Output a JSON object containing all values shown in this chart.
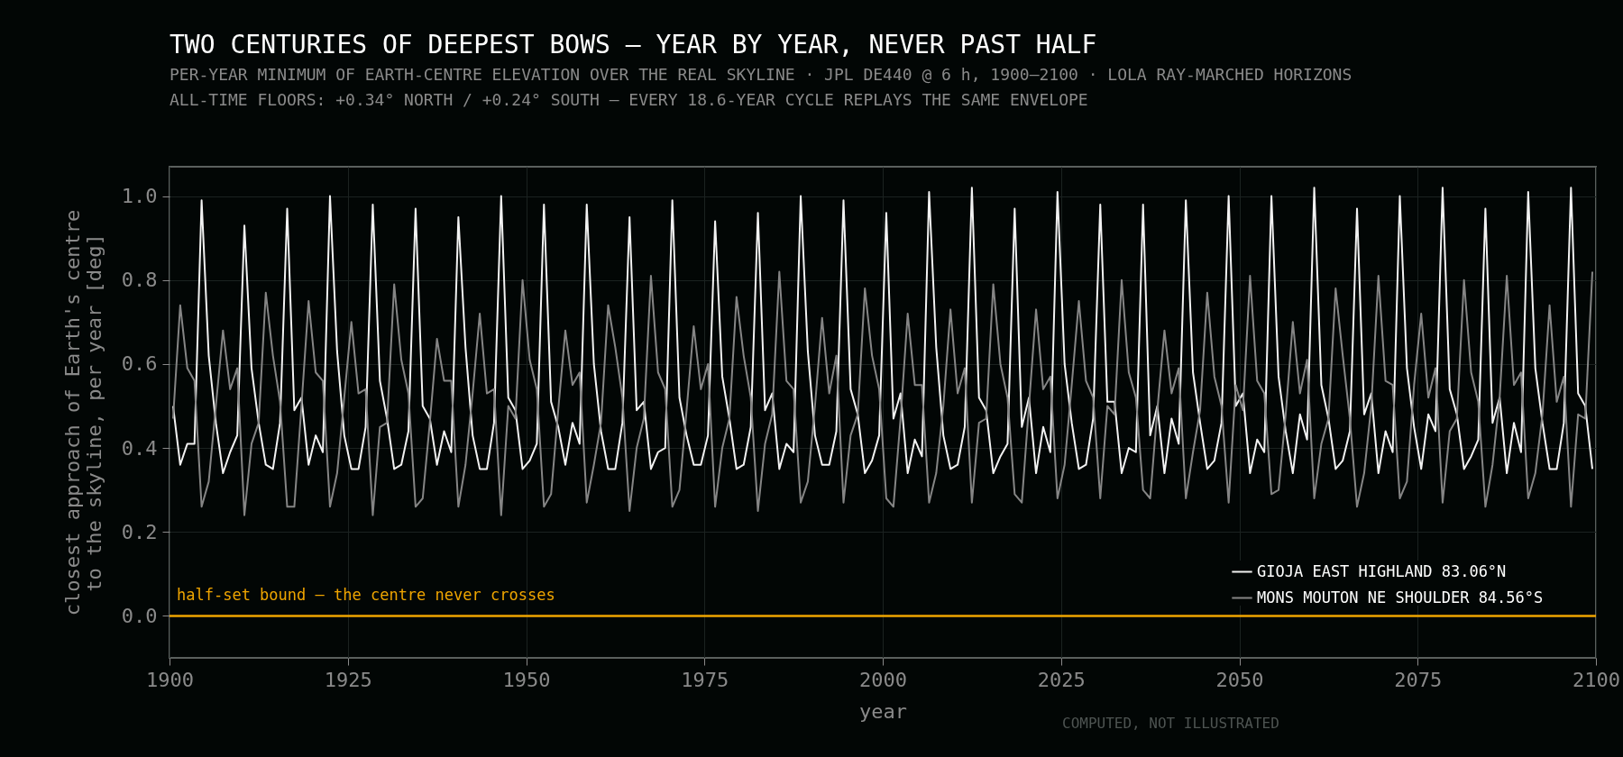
{
  "chart_data": {
    "type": "line",
    "title": "TWO CENTURIES OF DEEPEST BOWS — YEAR BY YEAR, NEVER PAST HALF",
    "subtitle": "PER-YEAR MINIMUM OF EARTH-CENTRE ELEVATION OVER THE REAL SKYLINE · JPL DE440 @ 6 h, 1900–2100 · LOLA RAY-MARCHED HORIZONS\nALL-TIME FLOORS: +0.34° NORTH / +0.24° SOUTH — EVERY 18.6-YEAR CYCLE REPLAYS THE SAME ENVELOPE",
    "xlabel": "year",
    "ylabel": "closest approach of Earth's centre\nto the skyline, per year [deg]",
    "annotations": [
      "COMPUTED, NOT ILLUSTRATED"
    ],
    "x": [
      1900.5,
      1901.5,
      1902.5,
      1903.5,
      1904.5,
      1905.5,
      1906.5,
      1907.5,
      1908.5,
      1909.5,
      1910.5,
      1911.5,
      1912.5,
      1913.5,
      1914.5,
      1915.5,
      1916.5,
      1917.5,
      1918.5,
      1919.5,
      1920.5,
      1921.5,
      1922.5,
      1923.5,
      1924.5,
      1925.5,
      1926.5,
      1927.5,
      1928.5,
      1929.5,
      1930.5,
      1931.5,
      1932.5,
      1933.5,
      1934.5,
      1935.5,
      1936.5,
      1937.5,
      1938.5,
      1939.5,
      1940.5,
      1941.5,
      1942.5,
      1943.5,
      1944.5,
      1945.5,
      1946.5,
      1947.5,
      1948.5,
      1949.5,
      1950.5,
      1951.5,
      1952.5,
      1953.5,
      1954.5,
      1955.5,
      1956.5,
      1957.5,
      1958.5,
      1959.5,
      1960.5,
      1961.5,
      1962.5,
      1963.5,
      1964.5,
      1965.5,
      1966.5,
      1967.5,
      1968.5,
      1969.5,
      1970.5,
      1971.5,
      1972.5,
      1973.5,
      1974.5,
      1975.5,
      1976.5,
      1977.5,
      1978.5,
      1979.5,
      1980.5,
      1981.5,
      1982.5,
      1983.5,
      1984.5,
      1985.5,
      1986.5,
      1987.5,
      1988.5,
      1989.5,
      1990.5,
      1991.5,
      1992.5,
      1993.5,
      1994.5,
      1995.5,
      1996.5,
      1997.5,
      1998.5,
      1999.5,
      2000.5,
      2001.5,
      2002.5,
      2003.5,
      2004.5,
      2005.5,
      2006.5,
      2007.5,
      2008.5,
      2009.5,
      2010.5,
      2011.5,
      2012.5,
      2013.5,
      2014.5,
      2015.5,
      2016.5,
      2017.5,
      2018.5,
      2019.5,
      2020.5,
      2021.5,
      2022.5,
      2023.5,
      2024.5,
      2025.5,
      2026.5,
      2027.5,
      2028.5,
      2029.5,
      2030.5,
      2031.5,
      2032.5,
      2033.5,
      2034.5,
      2035.5,
      2036.5,
      2037.5,
      2038.5,
      2039.5,
      2040.5,
      2041.5,
      2042.5,
      2043.5,
      2044.5,
      2045.5,
      2046.5,
      2047.5,
      2048.5,
      2049.5,
      2050.5,
      2051.5,
      2052.5,
      2053.5,
      2054.5,
      2055.5,
      2056.5,
      2057.5,
      2058.5,
      2059.5,
      2060.5,
      2061.5,
      2062.5,
      2063.5,
      2064.5,
      2065.5,
      2066.5,
      2067.5,
      2068.5,
      2069.5,
      2070.5,
      2071.5,
      2072.5,
      2073.5,
      2074.5,
      2075.5,
      2076.5,
      2077.5,
      2078.5,
      2079.5,
      2080.5,
      2081.5,
      2082.5,
      2083.5,
      2084.5,
      2085.5,
      2086.5,
      2087.5,
      2088.5,
      2089.5,
      2090.5,
      2091.5,
      2092.5,
      2093.5,
      2094.5,
      2095.5,
      2096.5,
      2097.5,
      2098.5,
      2099.5
    ],
    "series": [
      {
        "name": "GIOJA EAST HIGHLAND 83.06°N",
        "color": "#f2f2f2",
        "values": [
          0.5,
          0.36,
          0.41,
          0.41,
          0.99,
          0.62,
          0.46,
          0.34,
          0.39,
          0.43,
          0.93,
          0.59,
          0.46,
          0.36,
          0.35,
          0.46,
          0.97,
          0.49,
          0.52,
          0.36,
          0.43,
          0.39,
          1.0,
          0.63,
          0.43,
          0.35,
          0.35,
          0.45,
          0.98,
          0.56,
          0.47,
          0.35,
          0.36,
          0.44,
          0.97,
          0.5,
          0.47,
          0.36,
          0.44,
          0.39,
          0.95,
          0.64,
          0.43,
          0.35,
          0.35,
          0.46,
          1.0,
          0.52,
          0.49,
          0.35,
          0.37,
          0.41,
          0.98,
          0.51,
          0.45,
          0.36,
          0.46,
          0.41,
          0.98,
          0.6,
          0.44,
          0.35,
          0.35,
          0.46,
          0.95,
          0.49,
          0.51,
          0.35,
          0.39,
          0.4,
          0.99,
          0.52,
          0.43,
          0.36,
          0.36,
          0.43,
          0.94,
          0.57,
          0.47,
          0.35,
          0.36,
          0.45,
          0.96,
          0.49,
          0.53,
          0.35,
          0.41,
          0.39,
          1.0,
          0.63,
          0.43,
          0.36,
          0.36,
          0.44,
          0.99,
          0.54,
          0.48,
          0.34,
          0.37,
          0.43,
          0.96,
          0.47,
          0.53,
          0.34,
          0.42,
          0.38,
          1.01,
          0.64,
          0.43,
          0.35,
          0.36,
          0.45,
          1.02,
          0.52,
          0.49,
          0.34,
          0.38,
          0.41,
          0.97,
          0.45,
          0.52,
          0.34,
          0.45,
          0.39,
          1.01,
          0.6,
          0.46,
          0.35,
          0.36,
          0.47,
          0.98,
          0.51,
          0.51,
          0.34,
          0.4,
          0.39,
          0.98,
          0.43,
          0.5,
          0.34,
          0.47,
          0.41,
          0.99,
          0.58,
          0.46,
          0.35,
          0.37,
          0.46,
          1.0,
          0.5,
          0.53,
          0.34,
          0.42,
          0.39,
          1.0,
          0.57,
          0.44,
          0.34,
          0.48,
          0.42,
          1.02,
          0.55,
          0.47,
          0.35,
          0.37,
          0.44,
          0.97,
          0.48,
          0.53,
          0.34,
          0.44,
          0.39,
          1.0,
          0.59,
          0.45,
          0.35,
          0.48,
          0.44,
          1.02,
          0.54,
          0.48,
          0.35,
          0.38,
          0.42,
          0.97,
          0.46,
          0.52,
          0.34,
          0.46,
          0.39,
          1.01,
          0.59,
          0.46,
          0.35,
          0.35,
          0.46,
          1.02,
          0.53,
          0.5,
          0.35
        ]
      },
      {
        "name": "MONS MOUTON NE SHOULDER 84.56°S",
        "color": "#858585",
        "values": [
          0.47,
          0.74,
          0.59,
          0.56,
          0.26,
          0.32,
          0.5,
          0.68,
          0.54,
          0.59,
          0.24,
          0.41,
          0.46,
          0.77,
          0.62,
          0.51,
          0.26,
          0.26,
          0.5,
          0.75,
          0.58,
          0.56,
          0.26,
          0.34,
          0.52,
          0.7,
          0.53,
          0.54,
          0.24,
          0.45,
          0.46,
          0.79,
          0.61,
          0.53,
          0.26,
          0.28,
          0.46,
          0.66,
          0.56,
          0.56,
          0.26,
          0.36,
          0.53,
          0.72,
          0.53,
          0.54,
          0.24,
          0.5,
          0.47,
          0.8,
          0.61,
          0.54,
          0.26,
          0.29,
          0.49,
          0.68,
          0.55,
          0.58,
          0.27,
          0.36,
          0.46,
          0.74,
          0.64,
          0.52,
          0.25,
          0.4,
          0.47,
          0.81,
          0.58,
          0.54,
          0.26,
          0.3,
          0.49,
          0.69,
          0.54,
          0.6,
          0.26,
          0.4,
          0.47,
          0.76,
          0.62,
          0.52,
          0.25,
          0.41,
          0.48,
          0.82,
          0.56,
          0.54,
          0.27,
          0.32,
          0.5,
          0.71,
          0.53,
          0.62,
          0.27,
          0.43,
          0.48,
          0.78,
          0.62,
          0.54,
          0.28,
          0.26,
          0.47,
          0.72,
          0.55,
          0.55,
          0.27,
          0.34,
          0.5,
          0.73,
          0.53,
          0.59,
          0.27,
          0.46,
          0.47,
          0.79,
          0.6,
          0.52,
          0.29,
          0.27,
          0.5,
          0.73,
          0.54,
          0.57,
          0.28,
          0.36,
          0.55,
          0.75,
          0.56,
          0.52,
          0.28,
          0.5,
          0.48,
          0.8,
          0.58,
          0.52,
          0.3,
          0.28,
          0.49,
          0.68,
          0.53,
          0.59,
          0.28,
          0.39,
          0.49,
          0.77,
          0.57,
          0.5,
          0.27,
          0.55,
          0.49,
          0.81,
          0.56,
          0.53,
          0.29,
          0.3,
          0.48,
          0.7,
          0.53,
          0.61,
          0.28,
          0.41,
          0.47,
          0.78,
          0.62,
          0.47,
          0.26,
          0.34,
          0.5,
          0.81,
          0.56,
          0.55,
          0.28,
          0.32,
          0.55,
          0.72,
          0.52,
          0.59,
          0.27,
          0.44,
          0.47,
          0.8,
          0.58,
          0.51,
          0.26,
          0.36,
          0.52,
          0.81,
          0.55,
          0.58,
          0.28,
          0.34,
          0.48,
          0.74,
          0.51,
          0.57,
          0.26,
          0.48,
          0.47,
          0.82
        ]
      }
    ],
    "xlim": [
      1900,
      2100
    ],
    "xticks": [
      1900,
      1925,
      1950,
      1975,
      2000,
      2025,
      2050,
      2075,
      2100
    ],
    "ylim": [
      -0.1,
      1.07
    ],
    "yticks": [
      {
        "value": 0,
        "label": "0.0"
      },
      0.2,
      0.4,
      0.6,
      0.8,
      {
        "value": 1,
        "label": "1.0"
      }
    ],
    "ref_lines": [
      {
        "axis": "y",
        "value": 0,
        "label": "half-set bound — the centre never crosses",
        "color": "#f0a500"
      }
    ],
    "grid": true,
    "legend": "bottom right",
    "line_style": "solid"
  }
}
